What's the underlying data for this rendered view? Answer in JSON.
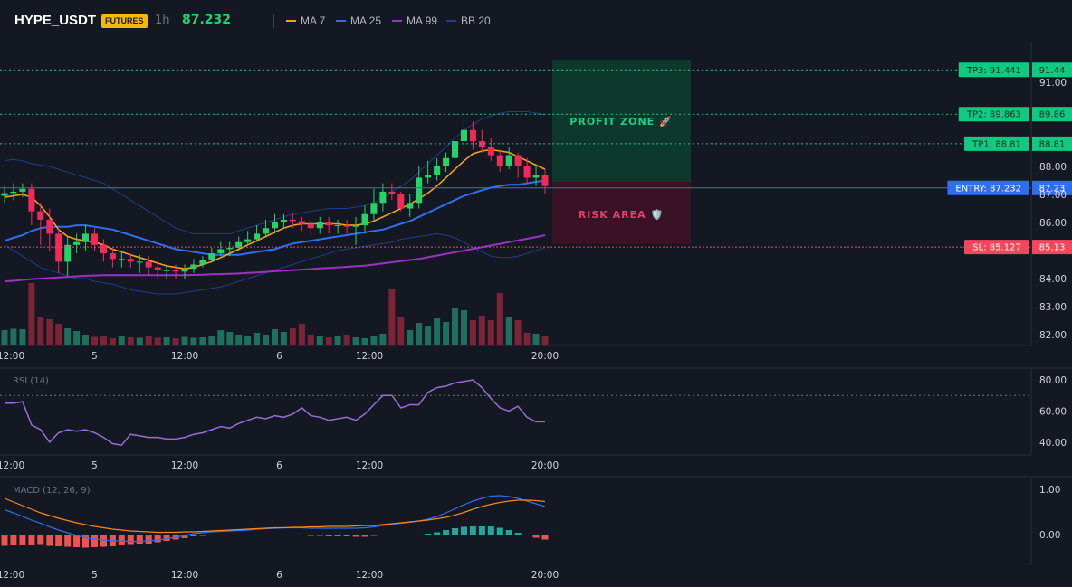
{
  "header": {
    "symbol": "HYPE_USDT",
    "market_badge": "FUTURES",
    "timeframe": "1h",
    "last_price": "87.232"
  },
  "legend": [
    {
      "label": "MA 7",
      "color": "#f7a21b"
    },
    {
      "label": "MA 25",
      "color": "#2f6fef"
    },
    {
      "label": "MA 99",
      "color": "#9b32c4"
    },
    {
      "label": "BB 20",
      "color": "#1e3f8a"
    }
  ],
  "colors": {
    "background": "#141823",
    "up": "#25d366",
    "down": "#f5285a",
    "tp_label": "#0ecb81",
    "entry_label": "#2f6fef",
    "sl_label": "#f6465d",
    "rsi_line": "#9b6bd6",
    "macd_line": "#2f6fef",
    "signal_line": "#f7861b"
  },
  "price_axis": [
    "91.00",
    "88.00",
    "87.00",
    "86.00",
    "84.00",
    "83.00",
    "82.00"
  ],
  "time_axis": [
    "12:00",
    "5",
    "12:00",
    "6",
    "12:00",
    "20:00"
  ],
  "rsi_axis": [
    "80.00",
    "60.00",
    "40.00"
  ],
  "macd_axis": [
    "1.00",
    "0.00"
  ],
  "zones": {
    "profit": "PROFIT ZONE 🚀",
    "risk": "RISK AREA 🛡️"
  },
  "price_lines": [
    {
      "id": "tp3",
      "label": "TP3: 91.441",
      "axis": "91.44",
      "price": 91.441,
      "kind": "tp"
    },
    {
      "id": "tp2",
      "label": "TP2: 89.863",
      "axis": "89.86",
      "price": 89.863,
      "kind": "tp"
    },
    {
      "id": "tp1",
      "label": "TP1: 88.81",
      "axis": "88.81",
      "price": 88.81,
      "kind": "tp"
    },
    {
      "id": "entry",
      "label": "ENTRY: 87.232",
      "axis": "87.23",
      "price": 87.232,
      "kind": "entry"
    },
    {
      "id": "sl",
      "label": "SL: 85.127",
      "axis": "85.13",
      "price": 85.127,
      "kind": "sl"
    }
  ],
  "indicators": {
    "rsi_title": "RSI (14)",
    "macd_title": "MACD (12, 26, 9)",
    "rsi_overbought": 70
  },
  "chart_data": {
    "type": "candlestick",
    "x": [
      0,
      1,
      2,
      3,
      4,
      5,
      6,
      7,
      8,
      9,
      10,
      11,
      12,
      13,
      14,
      15,
      16,
      17,
      18,
      19,
      20,
      21,
      22,
      23,
      24,
      25,
      26,
      27,
      28,
      29,
      30,
      31,
      32,
      33,
      34,
      35,
      36,
      37,
      38,
      39,
      40,
      41,
      42,
      43,
      44,
      45,
      46,
      47,
      48,
      49,
      50,
      51,
      52,
      53,
      54,
      55,
      56,
      57,
      58,
      59,
      60
    ],
    "open": [
      86.95,
      87.05,
      87.1,
      87.2,
      86.4,
      86.1,
      85.6,
      84.6,
      85.2,
      85.3,
      85.6,
      85.2,
      84.9,
      84.7,
      84.7,
      84.6,
      84.6,
      84.4,
      84.3,
      84.3,
      84.25,
      84.35,
      84.5,
      84.65,
      84.9,
      85.05,
      85.1,
      85.3,
      85.4,
      85.6,
      85.8,
      86.0,
      86.1,
      86.05,
      85.95,
      85.8,
      86.0,
      85.9,
      85.9,
      85.85,
      85.9,
      86.3,
      86.7,
      87.1,
      87.0,
      86.5,
      86.7,
      87.6,
      87.7,
      88.0,
      88.3,
      88.9,
      89.3,
      88.9,
      88.7,
      88.4,
      88.0,
      88.4,
      88.0,
      87.6,
      87.7
    ],
    "close": [
      87.05,
      87.1,
      87.2,
      86.4,
      86.1,
      85.6,
      84.6,
      85.2,
      85.3,
      85.6,
      85.2,
      84.9,
      84.7,
      84.7,
      84.6,
      84.6,
      84.4,
      84.3,
      84.3,
      84.25,
      84.35,
      84.5,
      84.65,
      84.9,
      85.05,
      85.1,
      85.3,
      85.4,
      85.6,
      85.8,
      86.0,
      86.1,
      86.05,
      85.95,
      85.8,
      86.0,
      85.9,
      85.9,
      85.85,
      85.9,
      86.3,
      86.7,
      87.1,
      87.0,
      86.5,
      86.7,
      87.6,
      87.7,
      88.0,
      88.3,
      88.9,
      89.3,
      88.9,
      88.7,
      88.4,
      88.0,
      88.4,
      88.0,
      87.6,
      87.7,
      87.3
    ],
    "high": [
      87.3,
      87.4,
      87.4,
      87.4,
      86.7,
      86.5,
      85.8,
      85.5,
      85.6,
      85.9,
      85.8,
      85.4,
      85.1,
      85.0,
      84.9,
      84.85,
      84.8,
      84.6,
      84.5,
      84.5,
      84.5,
      84.7,
      84.8,
      85.1,
      85.3,
      85.3,
      85.5,
      85.7,
      85.9,
      86.1,
      86.3,
      86.3,
      86.3,
      86.2,
      86.1,
      86.2,
      86.2,
      86.1,
      86.1,
      86.2,
      86.6,
      87.2,
      87.4,
      87.4,
      87.1,
      87.0,
      88.0,
      88.2,
      88.3,
      88.5,
      89.3,
      89.7,
      89.6,
      89.3,
      89.0,
      88.6,
      88.7,
      88.5,
      88.3,
      88.0,
      87.9
    ],
    "low": [
      86.7,
      86.8,
      86.9,
      85.9,
      85.2,
      85.0,
      84.2,
      84.1,
      84.9,
      85.0,
      85.0,
      84.6,
      84.4,
      84.4,
      84.4,
      84.2,
      84.1,
      84.0,
      84.0,
      84.0,
      84.0,
      84.2,
      84.4,
      84.6,
      84.8,
      84.8,
      85.0,
      85.2,
      85.3,
      85.5,
      85.6,
      85.8,
      85.8,
      85.7,
      85.5,
      85.6,
      85.6,
      85.6,
      85.6,
      85.2,
      85.6,
      86.0,
      86.4,
      86.8,
      86.4,
      86.2,
      86.5,
      87.4,
      87.5,
      87.8,
      88.1,
      88.6,
      88.6,
      88.5,
      88.2,
      87.8,
      87.9,
      87.6,
      87.4,
      87.3,
      87.0
    ],
    "volume": [
      160,
      175,
      170,
      680,
      300,
      280,
      230,
      180,
      150,
      110,
      85,
      95,
      70,
      90,
      80,
      75,
      100,
      75,
      80,
      70,
      85,
      75,
      80,
      95,
      160,
      140,
      110,
      90,
      130,
      110,
      170,
      140,
      180,
      230,
      110,
      100,
      80,
      90,
      110,
      80,
      70,
      100,
      120,
      620,
      300,
      160,
      240,
      210,
      290,
      250,
      410,
      380,
      270,
      320,
      270,
      570,
      300,
      270,
      130,
      120,
      100
    ],
    "ma7": [
      86.9,
      86.95,
      87.0,
      86.9,
      86.6,
      86.2,
      85.75,
      85.5,
      85.4,
      85.35,
      85.3,
      85.2,
      85.05,
      84.95,
      84.85,
      84.75,
      84.65,
      84.55,
      84.45,
      84.4,
      84.35,
      84.4,
      84.5,
      84.6,
      84.75,
      84.9,
      85.05,
      85.2,
      85.35,
      85.5,
      85.65,
      85.8,
      85.9,
      85.95,
      85.95,
      85.95,
      85.95,
      85.95,
      85.9,
      85.9,
      85.95,
      86.05,
      86.2,
      86.35,
      86.5,
      86.65,
      86.85,
      87.05,
      87.3,
      87.6,
      87.9,
      88.2,
      88.45,
      88.55,
      88.6,
      88.55,
      88.5,
      88.35,
      88.2,
      88.05,
      87.9
    ],
    "ma25": [
      85.35,
      85.45,
      85.55,
      85.7,
      85.8,
      85.85,
      85.85,
      85.85,
      85.9,
      85.9,
      85.85,
      85.8,
      85.75,
      85.65,
      85.55,
      85.45,
      85.35,
      85.25,
      85.15,
      85.05,
      85.0,
      84.95,
      84.9,
      84.85,
      84.85,
      84.85,
      84.85,
      84.9,
      84.95,
      85.0,
      85.05,
      85.15,
      85.25,
      85.3,
      85.35,
      85.4,
      85.45,
      85.5,
      85.55,
      85.6,
      85.65,
      85.7,
      85.75,
      85.85,
      85.95,
      86.05,
      86.2,
      86.35,
      86.5,
      86.65,
      86.8,
      86.95,
      87.05,
      87.15,
      87.25,
      87.3,
      87.35,
      87.35,
      87.4,
      87.45,
      87.5
    ],
    "ma99": [
      83.9,
      83.92,
      83.95,
      83.98,
      84.0,
      84.02,
      84.04,
      84.06,
      84.08,
      84.1,
      84.11,
      84.12,
      84.12,
      84.12,
      84.12,
      84.12,
      84.12,
      84.12,
      84.12,
      84.12,
      84.12,
      84.13,
      84.14,
      84.15,
      84.16,
      84.17,
      84.18,
      84.2,
      84.22,
      84.24,
      84.26,
      84.28,
      84.3,
      84.32,
      84.34,
      84.36,
      84.38,
      84.4,
      84.42,
      84.44,
      84.46,
      84.5,
      84.54,
      84.58,
      84.62,
      84.66,
      84.7,
      84.76,
      84.82,
      84.88,
      84.94,
      85.0,
      85.06,
      85.12,
      85.18,
      85.24,
      85.3,
      85.36,
      85.42,
      85.48,
      85.55
    ],
    "bb_upper": [
      88.2,
      88.25,
      88.2,
      88.1,
      88.05,
      88.0,
      87.9,
      87.8,
      87.7,
      87.6,
      87.5,
      87.4,
      87.2,
      87.0,
      86.8,
      86.6,
      86.4,
      86.2,
      86.0,
      85.8,
      85.7,
      85.6,
      85.6,
      85.6,
      85.6,
      85.6,
      85.7,
      85.8,
      85.9,
      86.0,
      86.1,
      86.2,
      86.3,
      86.35,
      86.4,
      86.45,
      86.5,
      86.5,
      86.5,
      86.55,
      86.6,
      86.7,
      86.9,
      87.1,
      87.3,
      87.5,
      87.8,
      88.1,
      88.4,
      88.7,
      89.0,
      89.3,
      89.5,
      89.7,
      89.8,
      89.9,
      89.95,
      89.95,
      89.95,
      89.9,
      89.85
    ],
    "bb_lower": [
      85.2,
      85.0,
      84.8,
      84.6,
      84.4,
      84.3,
      84.2,
      84.1,
      84.0,
      84.0,
      83.9,
      83.85,
      83.8,
      83.7,
      83.6,
      83.55,
      83.5,
      83.45,
      83.45,
      83.45,
      83.5,
      83.55,
      83.6,
      83.65,
      83.7,
      83.8,
      83.9,
      84.0,
      84.1,
      84.2,
      84.3,
      84.4,
      84.5,
      84.6,
      84.7,
      84.8,
      84.9,
      85.0,
      85.05,
      85.1,
      85.15,
      85.2,
      85.25,
      85.3,
      85.4,
      85.45,
      85.5,
      85.55,
      85.6,
      85.55,
      85.45,
      85.3,
      85.1,
      84.95,
      84.8,
      84.75,
      84.75,
      84.8,
      84.9,
      85.0,
      85.1
    ],
    "rsi": [
      65,
      65,
      66,
      51,
      48,
      40,
      46,
      48,
      47,
      48,
      46,
      43,
      39,
      38,
      45,
      44,
      43,
      43,
      42,
      42,
      43,
      45,
      46,
      48,
      50,
      49,
      52,
      54,
      56,
      55,
      57,
      56,
      58,
      62,
      57,
      56,
      54,
      55,
      56,
      54,
      58,
      64,
      70,
      70,
      62,
      64,
      64,
      72,
      75,
      76,
      78,
      79,
      80,
      75,
      68,
      62,
      60,
      63,
      56,
      53,
      53
    ],
    "macd": [
      0.55,
      0.48,
      0.4,
      0.32,
      0.25,
      0.17,
      0.1,
      0.04,
      -0.02,
      -0.07,
      -0.1,
      -0.12,
      -0.14,
      -0.14,
      -0.15,
      -0.15,
      -0.14,
      -0.12,
      -0.09,
      -0.06,
      -0.02,
      0.02,
      0.04,
      0.06,
      0.07,
      0.08,
      0.09,
      0.1,
      0.12,
      0.13,
      0.14,
      0.15,
      0.15,
      0.15,
      0.14,
      0.14,
      0.14,
      0.14,
      0.14,
      0.14,
      0.15,
      0.17,
      0.2,
      0.23,
      0.25,
      0.27,
      0.3,
      0.34,
      0.4,
      0.48,
      0.57,
      0.66,
      0.74,
      0.8,
      0.85,
      0.86,
      0.84,
      0.8,
      0.74,
      0.68,
      0.62
    ],
    "signal": [
      0.8,
      0.72,
      0.64,
      0.56,
      0.48,
      0.42,
      0.36,
      0.31,
      0.26,
      0.22,
      0.18,
      0.15,
      0.12,
      0.1,
      0.08,
      0.07,
      0.06,
      0.05,
      0.05,
      0.05,
      0.06,
      0.06,
      0.07,
      0.08,
      0.09,
      0.1,
      0.11,
      0.12,
      0.13,
      0.14,
      0.15,
      0.15,
      0.16,
      0.16,
      0.17,
      0.17,
      0.18,
      0.18,
      0.18,
      0.19,
      0.2,
      0.2,
      0.22,
      0.24,
      0.26,
      0.28,
      0.3,
      0.32,
      0.35,
      0.38,
      0.43,
      0.49,
      0.56,
      0.62,
      0.67,
      0.71,
      0.74,
      0.76,
      0.76,
      0.75,
      0.73
    ],
    "ylim_price": [
      81.8,
      91.8
    ],
    "ylim_rsi": [
      30,
      90
    ],
    "ylim_macd": [
      -0.45,
      1.1
    ]
  }
}
